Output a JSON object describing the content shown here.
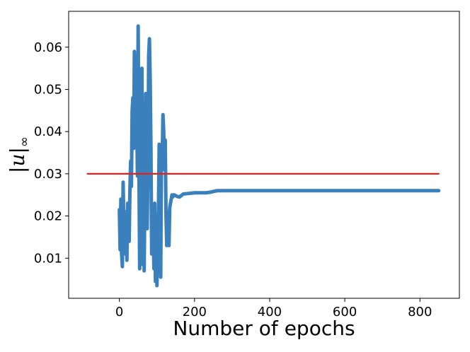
{
  "chart_data": {
    "type": "line",
    "title": "",
    "xlabel": "Number of epochs",
    "ylabel": {
      "bar_left": "|",
      "var": "u",
      "bar_right": "|",
      "sub": "∞"
    },
    "xlim": [
      -135,
      905
    ],
    "ylim": [
      0.0005,
      0.0685
    ],
    "x_ticks": [
      0,
      200,
      400,
      600,
      800
    ],
    "y_ticks": [
      0.01,
      0.02,
      0.03,
      0.04,
      0.05,
      0.06
    ],
    "y_tick_labels": [
      "0.01",
      "0.02",
      "0.03",
      "0.04",
      "0.05",
      "0.06"
    ],
    "grid": false,
    "series": [
      {
        "color": "#3a80bd",
        "style": "solid-thick",
        "x": [
          0,
          2,
          4,
          6,
          8,
          10,
          12,
          14,
          16,
          18,
          20,
          22,
          24,
          26,
          28,
          30,
          32,
          34,
          36,
          38,
          40,
          42,
          44,
          46,
          48,
          50,
          52,
          54,
          56,
          58,
          60,
          62,
          64,
          66,
          68,
          70,
          72,
          74,
          76,
          78,
          80,
          82,
          84,
          86,
          88,
          90,
          92,
          94,
          96,
          98,
          100,
          102,
          104,
          106,
          108,
          110,
          112,
          114,
          116,
          118,
          120,
          122,
          124,
          126,
          128,
          130,
          132,
          134,
          136,
          138,
          140,
          142,
          144,
          146,
          150,
          155,
          160,
          170,
          180,
          190,
          200,
          210,
          220,
          230,
          240,
          250,
          260,
          270,
          280,
          300,
          350,
          400,
          500,
          600,
          700,
          800,
          850
        ],
        "y": [
          0.0215,
          0.012,
          0.024,
          0.011,
          0.008,
          0.028,
          0.016,
          0.018,
          0.011,
          0.021,
          0.0095,
          0.023,
          0.017,
          0.014,
          0.026,
          0.033,
          0.027,
          0.045,
          0.048,
          0.036,
          0.059,
          0.043,
          0.056,
          0.048,
          0.0295,
          0.065,
          0.032,
          0.0075,
          0.025,
          0.012,
          0.055,
          0.0085,
          0.031,
          0.007,
          0.029,
          0.049,
          0.045,
          0.017,
          0.032,
          0.058,
          0.062,
          0.052,
          0.036,
          0.011,
          0.021,
          0.017,
          0.0075,
          0.023,
          0.0045,
          0.014,
          0.0035,
          0.017,
          0.021,
          0.037,
          0.016,
          0.0055,
          0.034,
          0.033,
          0.044,
          0.04,
          0.031,
          0.038,
          0.021,
          0.013,
          0.021,
          0.015,
          0.013,
          0.022,
          0.023,
          0.024,
          0.025,
          0.0245,
          0.025,
          0.025,
          0.0248,
          0.0246,
          0.0245,
          0.0252,
          0.0253,
          0.0254,
          0.0255,
          0.0255,
          0.0255,
          0.0255,
          0.0256,
          0.0258,
          0.026,
          0.026,
          0.026,
          0.026,
          0.026,
          0.026,
          0.026,
          0.026,
          0.026,
          0.026,
          0.026
        ]
      },
      {
        "color": "#e8201c",
        "style": "solid-thin",
        "x": [
          -85,
          850
        ],
        "y": [
          0.03,
          0.03
        ]
      }
    ]
  }
}
